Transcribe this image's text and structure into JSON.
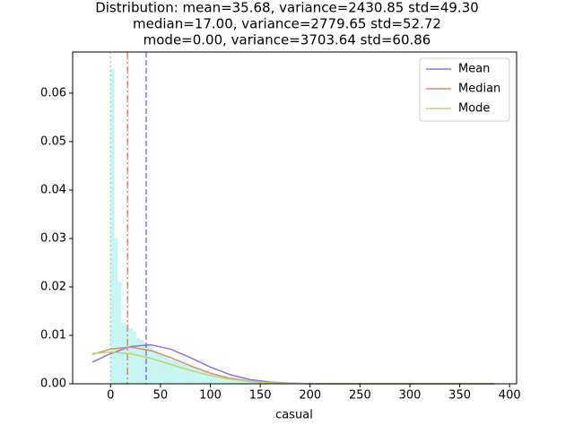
{
  "chart_data": {
    "type": "histogram",
    "title": [
      "Distribution: mean=35.68, variance=2430.85 std=49.30",
      "median=17.00, variance=2779.65 std=52.72",
      "mode=0.00, variance=3703.64 std=60.86"
    ],
    "xlabel": "casual",
    "bins": [
      0,
      3.67,
      7.34,
      11.01,
      14.68,
      18.35,
      22.02,
      25.69,
      29.36,
      33.03,
      36.7,
      40.37,
      44.04,
      47.71,
      51.38,
      55.05,
      58.72,
      62.39,
      66.06,
      69.73,
      73.4,
      77.07,
      80.74,
      84.41,
      88.08,
      91.75,
      95.42,
      99.09,
      102.76,
      106.43,
      110.1,
      113.77,
      117.44,
      121.11,
      124.78,
      128.45,
      132.12,
      135.79,
      139.46,
      143.13,
      146.8,
      150.47,
      154.14,
      157.81,
      161.48,
      165.15,
      168.82,
      172.49,
      176.16,
      179.83,
      183.5,
      187.17,
      190.84,
      194.51,
      198.18,
      201.85,
      205.52,
      209.19,
      212.86,
      216.53,
      220.2,
      223.87,
      227.54,
      231.21,
      234.88,
      238.55,
      242.22,
      245.89,
      249.56,
      253.23,
      256.9,
      260.57,
      264.24,
      267.91,
      271.58,
      275.25,
      278.92,
      282.59,
      286.26,
      289.93,
      293.6,
      297.27,
      300.94,
      304.61,
      308.28,
      311.95,
      315.62,
      319.29,
      322.96,
      326.63,
      330.3,
      333.97,
      337.64,
      341.31,
      344.98,
      348.65,
      352.32,
      355.99,
      359.66,
      363.33,
      367
    ],
    "values": [
      0.065,
      0.03,
      0.021,
      0.0125,
      0.012,
      0.0115,
      0.011,
      0.0095,
      0.009,
      0.0085,
      0.008,
      0.0075,
      0.007,
      0.0065,
      0.006,
      0.0055,
      0.005,
      0.0048,
      0.0045,
      0.0042,
      0.004,
      0.0037,
      0.0034,
      0.0031,
      0.0028,
      0.0026,
      0.0024,
      0.0022,
      0.002,
      0.0018,
      0.0016,
      0.0015,
      0.0014,
      0.0013,
      0.0012,
      0.0011,
      0.001,
      0.0009,
      0.0008,
      0.0007,
      0.0006,
      0.0006,
      0.0005,
      0.0005,
      0.0004,
      0.0004,
      0.0004,
      0.0003,
      0.0003,
      0.0003,
      0.0002,
      0.0002,
      0.0002,
      0.0002,
      0.0002,
      0.0002,
      0.0002,
      0.0002,
      0.0002,
      0.0002,
      0.0001,
      0.0001,
      0.0001,
      0.0001,
      0.0001,
      0.0001,
      0.0001,
      0.0001,
      0.0001,
      0.0001,
      5e-05,
      5e-05,
      5e-05,
      5e-05,
      5e-05,
      5e-05,
      5e-05,
      5e-05,
      5e-05,
      5e-05,
      5e-05,
      5e-05,
      5e-05,
      5e-05,
      5e-05,
      5e-05,
      5e-05,
      5e-05,
      5e-05,
      5e-05,
      5e-05,
      5e-05,
      5e-05,
      5e-05,
      5e-05,
      5e-05,
      5e-05,
      5e-05,
      5e-05,
      5e-05
    ],
    "color": "#c6f5f2",
    "curves": {
      "x": [
        -18,
        0,
        20,
        40,
        60,
        80,
        100,
        120,
        140,
        160,
        180,
        200,
        250,
        300,
        385
      ],
      "series": [
        {
          "name": "Mean",
          "color": "#9370db",
          "values": [
            0.004473,
            0.006228,
            0.007693,
            0.00806,
            0.007165,
            0.005402,
            0.003455,
            0.001874,
            0.000863,
            0.000337,
            0.000111,
            3.13e-05,
            0,
            0,
            0
          ]
        },
        {
          "name": "Median",
          "color": "#db8b6e",
          "values": [
            0.00607,
            0.007184,
            0.007555,
            0.00688,
            0.005426,
            0.003706,
            0.002191,
            0.001122,
            0.000498,
            0.000191,
            6.36e-05,
            1.83e-05,
            0,
            0,
            0
          ]
        },
        {
          "name": "Mode",
          "color": "#b9d86c",
          "values": [
            0.006274,
            0.006555,
            0.00621,
            0.005281,
            0.004032,
            0.002763,
            0.001699,
            0.000938,
            0.000465,
            0.000207,
            8.26e-05,
            2.95e-05,
            0,
            0,
            0
          ]
        }
      ]
    },
    "vlines": [
      {
        "value": 35.68,
        "color": "#9370db",
        "dash": "dashed"
      },
      {
        "value": 17,
        "color": "#db8b6e",
        "dash": "dashdot"
      },
      {
        "value": 0,
        "color": "#90ee90",
        "dash": "dotted"
      }
    ],
    "xlim": [
      -38,
      407
    ],
    "ylim": [
      0,
      0.0685
    ],
    "xticks": [
      0,
      50,
      100,
      150,
      200,
      250,
      300,
      350,
      400
    ],
    "yticks": [
      {
        "value": 0,
        "label": "0.00"
      },
      0.01,
      0.02,
      0.03,
      0.04,
      0.05,
      0.06
    ],
    "legend": "upper right"
  }
}
